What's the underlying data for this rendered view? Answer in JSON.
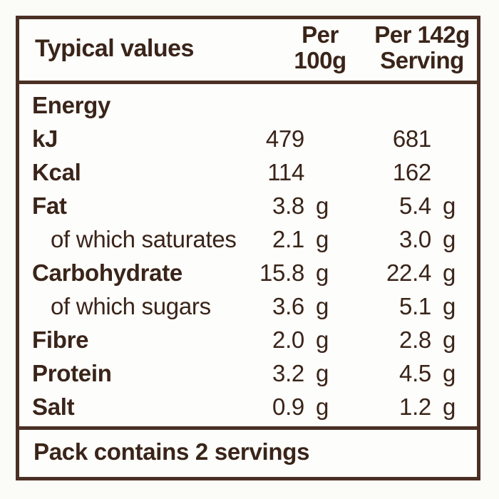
{
  "header": {
    "title": "Typical values",
    "col1_line1": "Per",
    "col1_line2": "100g",
    "col2_line1": "Per 142g",
    "col2_line2": "Serving"
  },
  "rows": [
    {
      "name": "Energy",
      "v1": "",
      "u1": "",
      "v2": "",
      "u2": ""
    },
    {
      "name": "kJ",
      "v1": "479",
      "u1": "",
      "v2": "681",
      "u2": ""
    },
    {
      "name": "Kcal",
      "v1": "114",
      "u1": "",
      "v2": "162",
      "u2": ""
    },
    {
      "name": "Fat",
      "v1": "3.8",
      "u1": "g",
      "v2": "5.4",
      "u2": "g"
    },
    {
      "name": "of which saturates",
      "v1": "2.1",
      "u1": "g",
      "v2": "3.0",
      "u2": "g"
    },
    {
      "name": "Carbohydrate",
      "v1": "15.8",
      "u1": "g",
      "v2": "22.4",
      "u2": "g"
    },
    {
      "name": "of which sugars",
      "v1": "3.6",
      "u1": "g",
      "v2": "5.1",
      "u2": "g"
    },
    {
      "name": "Fibre",
      "v1": "2.0",
      "u1": "g",
      "v2": "2.8",
      "u2": "g"
    },
    {
      "name": "Protein",
      "v1": "3.2",
      "u1": "g",
      "v2": "4.5",
      "u2": "g"
    },
    {
      "name": "Salt",
      "v1": "0.9",
      "u1": "g",
      "v2": "1.2",
      "u2": "g"
    }
  ],
  "footer": {
    "text": "Pack contains 2 servings"
  }
}
